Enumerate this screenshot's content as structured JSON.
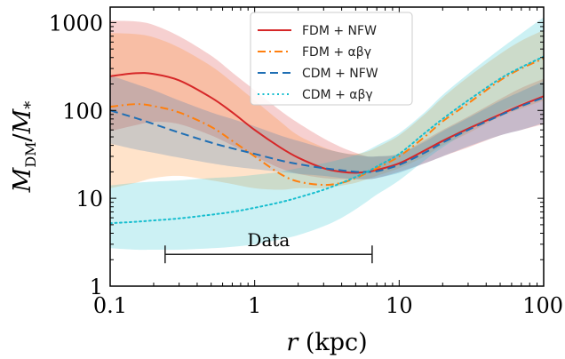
{
  "chart_data": {
    "type": "line",
    "title": "",
    "xlabel": "r (kpc)",
    "ylabel": "M_DM/M_*",
    "xscale": "log",
    "yscale": "log",
    "xlim": [
      0.1,
      100
    ],
    "ylim": [
      1,
      1500
    ],
    "xticks": [
      {
        "value": 0.1,
        "label": "0.1"
      },
      {
        "value": 1,
        "label": "1"
      },
      {
        "value": 10,
        "label": "10"
      },
      {
        "value": 100,
        "label": "100"
      }
    ],
    "yticks": [
      {
        "value": 1,
        "label": "1"
      },
      {
        "value": 10,
        "label": "10"
      },
      {
        "value": 100,
        "label": "100"
      },
      {
        "value": 1000,
        "label": "1000"
      }
    ],
    "grid": false,
    "legend_position": "top-center",
    "series": [
      {
        "name": "FDM + NFW",
        "color": "#d62728",
        "style": "solid",
        "x": [
          0.1,
          0.15,
          0.2,
          0.3,
          0.5,
          0.7,
          1,
          1.5,
          2,
          3,
          4,
          5,
          6,
          7,
          10,
          15,
          20,
          30,
          50,
          70,
          100
        ],
        "y": [
          245,
          265,
          260,
          220,
          140,
          95,
          60,
          38,
          29,
          22,
          20,
          19.5,
          20,
          21,
          25,
          35,
          45,
          62,
          90,
          115,
          145
        ],
        "band_upper": [
          1050,
          1030,
          940,
          700,
          420,
          270,
          170,
          100,
          72,
          48,
          38,
          33,
          30,
          30,
          32,
          46,
          60,
          85,
          135,
          180,
          230
        ],
        "band_lower": [
          58,
          68,
          74,
          70,
          52,
          40,
          30,
          22,
          19,
          17,
          16.5,
          16.5,
          16.5,
          17,
          20,
          25,
          30,
          38,
          52,
          60,
          70
        ]
      },
      {
        "name": "FDM + αβγ",
        "color": "#ff7f0e",
        "style": "dashdot",
        "x": [
          0.1,
          0.15,
          0.2,
          0.3,
          0.5,
          0.7,
          1,
          1.5,
          2,
          3,
          4,
          5,
          6,
          7,
          10,
          15,
          20,
          30,
          50,
          70,
          100
        ],
        "y": [
          110,
          118,
          112,
          95,
          65,
          45,
          30,
          19,
          15.5,
          14.2,
          15,
          17,
          19.5,
          22,
          30,
          50,
          75,
          120,
          220,
          300,
          390
        ],
        "band_upper": [
          760,
          740,
          680,
          520,
          320,
          210,
          130,
          75,
          52,
          38,
          33,
          32,
          34,
          38,
          52,
          90,
          140,
          240,
          440,
          620,
          820
        ],
        "band_lower": [
          13,
          15,
          17,
          18,
          16,
          14.5,
          13,
          12.5,
          13,
          13,
          14,
          15,
          16.5,
          18,
          22,
          30,
          40,
          55,
          85,
          105,
          130
        ]
      },
      {
        "name": "CDM + NFW",
        "color": "#1f6fb4",
        "style": "dashed",
        "x": [
          0.1,
          0.15,
          0.2,
          0.3,
          0.5,
          0.7,
          1,
          1.5,
          2,
          3,
          4,
          5,
          6,
          7,
          10,
          15,
          20,
          30,
          50,
          70,
          100
        ],
        "y": [
          100,
          82,
          70,
          56,
          43,
          37,
          32,
          27,
          24.5,
          22,
          20.8,
          20,
          20,
          20.3,
          24,
          33,
          43,
          60,
          88,
          112,
          140
        ],
        "band_upper": [
          250,
          200,
          170,
          130,
          95,
          80,
          66,
          52,
          45,
          37,
          33,
          31,
          30,
          30,
          32,
          44,
          58,
          82,
          128,
          165,
          215
        ],
        "band_lower": [
          42,
          36,
          33,
          29,
          25,
          23,
          21.5,
          20,
          19,
          18,
          17,
          16.5,
          16.5,
          17,
          19.5,
          25,
          30,
          39,
          52,
          60,
          72
        ]
      },
      {
        "name": "CDM + αβγ",
        "color": "#17becf",
        "style": "dotted",
        "x": [
          0.1,
          0.15,
          0.2,
          0.3,
          0.5,
          0.7,
          1,
          1.5,
          2,
          3,
          4,
          5,
          6,
          7,
          10,
          15,
          20,
          30,
          50,
          70,
          100
        ],
        "y": [
          5.2,
          5.4,
          5.6,
          5.9,
          6.5,
          7.0,
          7.8,
          9.0,
          10.2,
          12.5,
          15,
          17.5,
          20,
          23,
          32,
          55,
          80,
          130,
          230,
          310,
          410
        ],
        "band_upper": [
          14,
          15,
          15.5,
          16,
          17,
          17.5,
          18.5,
          20,
          22,
          25,
          28,
          31,
          35,
          40,
          55,
          95,
          150,
          260,
          500,
          750,
          1150
        ],
        "band_lower": [
          2.7,
          2.6,
          2.6,
          2.6,
          2.7,
          2.8,
          3.0,
          3.4,
          3.8,
          4.8,
          6.0,
          7.5,
          9.2,
          11,
          16,
          27,
          38,
          58,
          95,
          120,
          150
        ]
      }
    ],
    "annotations": [
      {
        "text": "Data",
        "x_start": 0.24,
        "x_end": 6.5,
        "y": 2.3
      }
    ]
  }
}
